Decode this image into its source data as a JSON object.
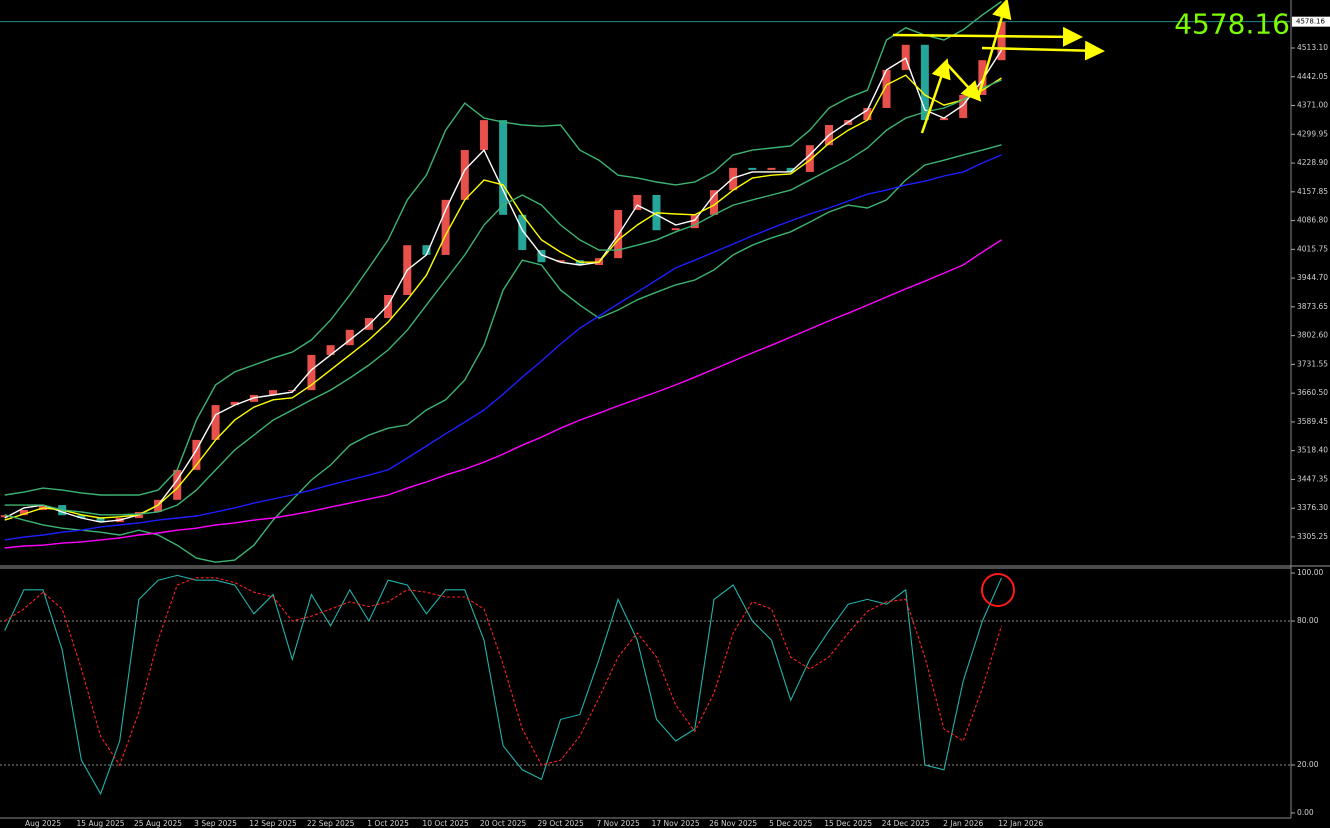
{
  "chart_data": [
    {
      "type": "candlestick",
      "close": [
        3359,
        3372,
        3384,
        3359,
        3352,
        3342,
        3352,
        3367,
        3397,
        3471,
        3545,
        3631,
        3639,
        3656,
        3668,
        3668,
        3755,
        3779,
        3817,
        3846,
        3903,
        4026,
        4002,
        4138,
        4261,
        4335,
        4101,
        4014,
        3984,
        3989,
        3977,
        3994,
        4113,
        4150,
        4063,
        4068,
        4101,
        4162,
        4217,
        4212,
        4217,
        4207,
        4273,
        4323,
        4335,
        4365,
        4459,
        4521,
        4335,
        4340,
        4397,
        4483,
        4578,
        null
      ],
      "up_color": "#e8504c",
      "down_color": "#26a69a",
      "series": [
        {
          "color": "#ffffff",
          "values": [
            3352,
            3377,
            3384,
            3367,
            3352,
            3342,
            3347,
            3360,
            3384,
            3446,
            3520,
            3607,
            3631,
            3649,
            3656,
            3663,
            3718,
            3755,
            3792,
            3829,
            3878,
            3965,
            4002,
            4113,
            4212,
            4261,
            4162,
            4063,
            4002,
            3984,
            3977,
            3984,
            4051,
            4125,
            4101,
            4076,
            4088,
            4150,
            4192,
            4207,
            4207,
            4207,
            4249,
            4298,
            4330,
            4360,
            4459,
            4488,
            4360,
            4340,
            4372,
            4434,
            4508,
            null
          ]
        },
        {
          "color": "#ffff00",
          "values": [
            3347,
            3362,
            3377,
            3372,
            3360,
            3352,
            3355,
            3360,
            3384,
            3426,
            3483,
            3545,
            3594,
            3626,
            3644,
            3649,
            3681,
            3718,
            3755,
            3792,
            3836,
            3891,
            3952,
            4051,
            4138,
            4187,
            4175,
            4101,
            4039,
            4009,
            3984,
            3984,
            4039,
            4076,
            4106,
            4103,
            4101,
            4125,
            4162,
            4192,
            4199,
            4202,
            4236,
            4278,
            4310,
            4335,
            4422,
            4446,
            4397,
            4372,
            4385,
            4409,
            4439,
            null
          ]
        },
        {
          "color": "#3cb371",
          "values": [
            3409,
            3416,
            3426,
            3421,
            3414,
            3409,
            3409,
            3409,
            3421,
            3471,
            3594,
            3681,
            3713,
            3730,
            3747,
            3762,
            3792,
            3841,
            3903,
            3970,
            4039,
            4138,
            4199,
            4310,
            4377,
            4340,
            4330,
            4323,
            4320,
            4323,
            4261,
            4236,
            4199,
            4192,
            4182,
            4175,
            4182,
            4207,
            4249,
            4261,
            4266,
            4271,
            4310,
            4365,
            4390,
            4409,
            4533,
            4563,
            4545,
            4533,
            4558,
            4595,
            4628,
            null
          ]
        },
        {
          "color": "#3cb371",
          "values": [
            3384,
            3384,
            3384,
            3372,
            3367,
            3360,
            3360,
            3362,
            3367,
            3384,
            3421,
            3471,
            3520,
            3557,
            3594,
            3619,
            3644,
            3668,
            3698,
            3730,
            3767,
            3816,
            3878,
            3940,
            4002,
            4076,
            4125,
            4150,
            4125,
            4076,
            4039,
            4014,
            4014,
            4026,
            4039,
            4059,
            4076,
            4101,
            4125,
            4138,
            4150,
            4162,
            4187,
            4212,
            4236,
            4266,
            4310,
            4340,
            4355,
            4365,
            4385,
            4414,
            4434,
            null
          ]
        },
        {
          "color": "#3cb371",
          "values": [
            3360,
            3347,
            3335,
            3327,
            3322,
            3317,
            3310,
            3322,
            3310,
            3285,
            3253,
            3243,
            3248,
            3285,
            3347,
            3397,
            3446,
            3483,
            3532,
            3557,
            3574,
            3582,
            3619,
            3644,
            3693,
            3779,
            3915,
            3989,
            3977,
            3915,
            3878,
            3846,
            3866,
            3891,
            3910,
            3928,
            3940,
            3965,
            4002,
            4026,
            4044,
            4059,
            4083,
            4108,
            4125,
            4118,
            4138,
            4187,
            4224,
            4236,
            4249,
            4261,
            4274,
            null
          ]
        },
        {
          "color": "#1e1eff",
          "values": [
            3298,
            3305,
            3310,
            3317,
            3322,
            3330,
            3335,
            3340,
            3347,
            3352,
            3357,
            3367,
            3377,
            3389,
            3399,
            3409,
            3421,
            3434,
            3446,
            3458,
            3471,
            3500,
            3530,
            3560,
            3589,
            3619,
            3658,
            3700,
            3740,
            3782,
            3821,
            3851,
            3881,
            3910,
            3940,
            3970,
            3989,
            4009,
            4029,
            4049,
            4068,
            4086,
            4103,
            4118,
            4135,
            4152,
            4162,
            4175,
            4184,
            4197,
            4207,
            4229,
            4249,
            null
          ]
        },
        {
          "color": "#ff00ff",
          "values": [
            3278,
            3283,
            3285,
            3290,
            3293,
            3298,
            3303,
            3310,
            3315,
            3322,
            3327,
            3335,
            3340,
            3347,
            3352,
            3360,
            3369,
            3379,
            3389,
            3399,
            3409,
            3426,
            3441,
            3458,
            3473,
            3490,
            3510,
            3532,
            3552,
            3574,
            3594,
            3611,
            3629,
            3646,
            3663,
            3681,
            3700,
            3720,
            3740,
            3760,
            3779,
            3799,
            3819,
            3839,
            3858,
            3878,
            3898,
            3918,
            3937,
            3957,
            3977,
            4009,
            4039,
            null
          ]
        }
      ],
      "current_price": 4578.16,
      "current_price_color": "#7cfc00",
      "ylim": [
        3236,
        4631.7
      ],
      "yticks": [
        {
          "value": 4513.1,
          "label": "4513.10"
        },
        4442.05,
        {
          "value": 4371,
          "label": "4371.00"
        },
        4299.95,
        {
          "value": 4228.9,
          "label": "4228.90"
        },
        4157.85,
        {
          "value": 4086.8,
          "label": "4086.80"
        },
        4015.75,
        {
          "value": 3944.7,
          "label": "3944.70"
        },
        3873.65,
        {
          "value": 3802.6,
          "label": "3802.60"
        },
        3731.55,
        {
          "value": 3660.5,
          "label": "3660.50"
        },
        3589.45,
        {
          "value": 3518.4,
          "label": "3518.40"
        },
        3447.35,
        {
          "value": 3376.3,
          "label": "3376.30"
        },
        3305.25
      ],
      "grid": false
    },
    {
      "type": "line",
      "categories": [
        null,
        null,
        "Aug 2025",
        null,
        null,
        "15 Aug 2025",
        null,
        null,
        "25 Aug 2025",
        null,
        null,
        "3 Sep 2025",
        null,
        null,
        "12 Sep 2025",
        null,
        null,
        "22 Sep 2025",
        null,
        null,
        "1 Oct 2025",
        null,
        null,
        "10 Oct 2025",
        null,
        null,
        "20 Oct 2025",
        null,
        null,
        "29 Oct 2025",
        null,
        null,
        "7 Nov 2025",
        null,
        null,
        "17 Nov 2025",
        null,
        null,
        "26 Nov 2025",
        null,
        null,
        "5 Dec 2025",
        null,
        null,
        "15 Dec 2025",
        null,
        null,
        "24 Dec 2025",
        null,
        null,
        "2 Jan 2026",
        null,
        null,
        "12 Jan 2026"
      ],
      "series": [
        {
          "color": "#20b2aa",
          "dashed": false,
          "values": [
            76,
            93,
            93,
            68,
            22,
            8,
            30,
            89,
            97,
            99,
            97,
            97,
            95,
            83,
            91,
            64,
            91,
            78,
            93,
            80,
            97,
            95,
            83,
            93,
            93,
            72,
            28,
            18,
            14,
            39,
            41,
            64,
            89,
            72,
            39,
            30,
            35,
            89,
            95,
            80,
            72,
            47,
            64,
            76,
            87,
            89,
            87,
            93,
            20,
            18,
            55,
            80,
            98,
            null
          ]
        },
        {
          "color": "#ff2020",
          "dashed": true,
          "values": [
            80,
            85,
            92,
            85,
            60,
            32,
            20,
            42,
            72,
            95,
            98,
            98,
            96,
            92,
            90,
            80,
            82,
            85,
            88,
            86,
            88,
            93,
            92,
            90,
            90,
            85,
            62,
            35,
            20,
            22,
            32,
            48,
            65,
            75,
            65,
            45,
            34,
            50,
            75,
            88,
            85,
            65,
            60,
            65,
            75,
            84,
            88,
            89,
            65,
            35,
            30,
            52,
            78,
            null
          ]
        }
      ],
      "ylim": [
        -2.1,
        102.1
      ],
      "yticks": [
        {
          "value": 100,
          "label": "100.00"
        },
        {
          "value": 80,
          "label": "80.00"
        },
        {
          "value": 20,
          "label": "20.00"
        },
        {
          "value": 0,
          "label": "0.00"
        }
      ],
      "grid": true
    }
  ]
}
